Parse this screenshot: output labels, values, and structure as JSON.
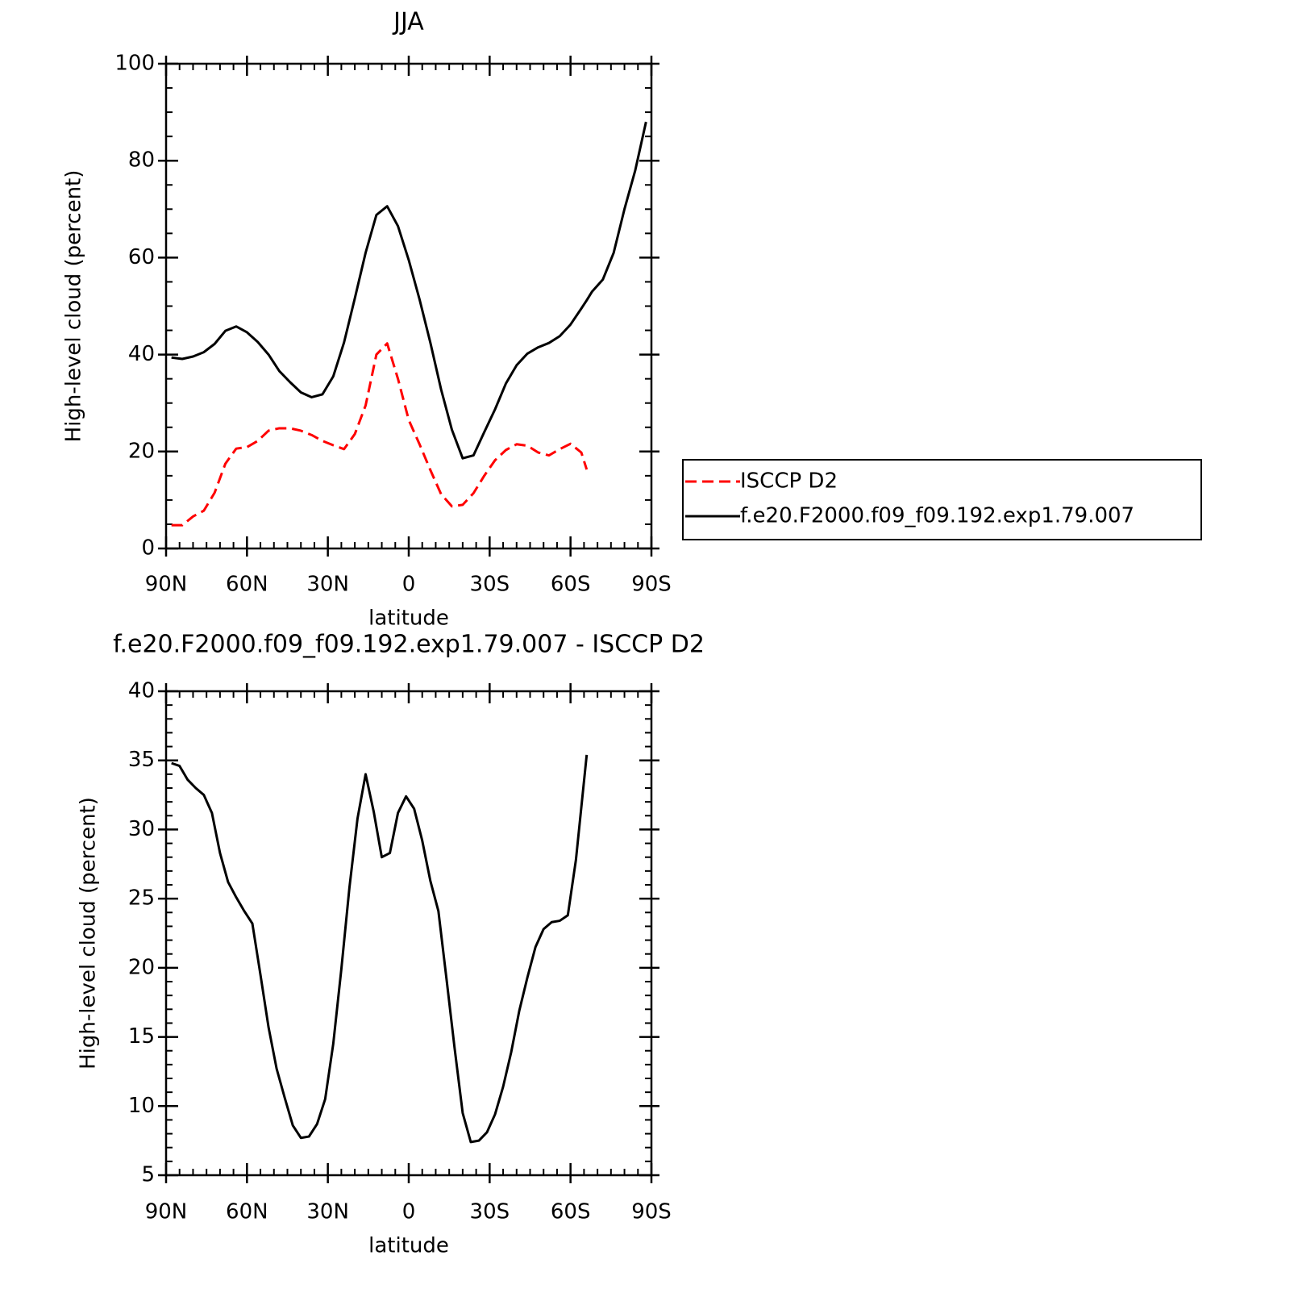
{
  "chart_data": [
    {
      "type": "line",
      "title": "JJA",
      "ylabel": "High-level cloud (percent)",
      "xlabel": "latitude",
      "x": [
        88,
        84,
        80,
        76,
        72,
        68,
        64,
        60,
        56,
        52,
        48,
        44,
        40,
        36,
        32,
        28,
        24,
        20,
        16,
        12,
        8,
        4,
        0,
        -4,
        -8,
        -12,
        -16,
        -20,
        -24,
        -28,
        -32,
        -36,
        -40,
        -44,
        -48,
        -52,
        -56,
        -60,
        -64,
        -66,
        -68,
        -72,
        -76,
        -80,
        -84,
        -88
      ],
      "series": [
        {
          "name": "ISCCP D2",
          "color": "#ff0000",
          "dash": true,
          "values": [
            4.8,
            4.8,
            6.6,
            7.8,
            11.5,
            17.5,
            20.6,
            20.9,
            22.2,
            24.3,
            24.8,
            24.8,
            24.3,
            23.4,
            22.2,
            21.3,
            20.5,
            23.6,
            29.5,
            40,
            42.3,
            35,
            26.5,
            21.5,
            16.2,
            11.2,
            8.7,
            9.0,
            11.4,
            15,
            18.2,
            20.3,
            21.5,
            21.2,
            19.8,
            19.2,
            20.5,
            21.6,
            19.8,
            16.3,
            null,
            null,
            null,
            null,
            null,
            null
          ]
        },
        {
          "name": "f.e20.F2000.f09_f09.192.exp1.79.007",
          "color": "#000000",
          "dash": false,
          "values": [
            39.4,
            39.1,
            39.6,
            40.5,
            42.2,
            44.9,
            45.8,
            44.6,
            42.6,
            40.0,
            36.6,
            34.3,
            32.2,
            31.2,
            31.8,
            35.5,
            42.5,
            51.6,
            61,
            68.8,
            70.6,
            66.5,
            59.5,
            51.4,
            42.5,
            32.8,
            24.5,
            18.6,
            19.2,
            24,
            28.7,
            34,
            37.8,
            40.2,
            41.5,
            42.4,
            43.8,
            46.2,
            49.5,
            51.2,
            53,
            55.5,
            61,
            70,
            78,
            88
          ]
        }
      ],
      "xlim": [
        90,
        -90
      ],
      "xticks": [
        {
          "value": 90,
          "label": "90N"
        },
        {
          "value": 60,
          "label": "60N"
        },
        {
          "value": 30,
          "label": "30N"
        },
        0,
        {
          "value": -30,
          "label": "30S"
        },
        {
          "value": -60,
          "label": "60S"
        },
        {
          "value": -90,
          "label": "90S"
        }
      ],
      "ylim": [
        0,
        100
      ],
      "yticks": [
        0,
        20,
        40,
        60,
        80,
        100
      ],
      "xminor": 6,
      "yminor": 4,
      "legend": "outside-right"
    },
    {
      "type": "line",
      "title": "f.e20.F2000.f09_f09.192.exp1.79.007 - ISCCP D2",
      "ylabel": "High-level cloud (percent)",
      "xlabel": "latitude",
      "x": [
        88,
        85,
        82,
        79,
        76,
        73,
        70,
        67,
        64,
        61,
        58,
        55,
        52,
        49,
        46,
        43,
        40,
        37,
        34,
        31,
        28,
        25,
        22,
        19,
        16,
        13,
        10,
        7,
        4,
        1,
        -2,
        -5,
        -8,
        -11,
        -14,
        -17,
        -20,
        -23,
        -26,
        -29,
        -32,
        -35,
        -38,
        -41,
        -44,
        -47,
        -50,
        -53,
        -56,
        -59,
        -62,
        -66
      ],
      "series": [
        {
          "color": "#000000",
          "dash": false,
          "values": [
            34.8,
            34.6,
            33.6,
            33.0,
            32.5,
            31.2,
            28.3,
            26.2,
            25.1,
            24.1,
            23.2,
            19.5,
            15.7,
            12.7,
            10.6,
            8.6,
            7.7,
            7.8,
            8.7,
            10.5,
            14.5,
            19.9,
            25.8,
            30.8,
            34.0,
            31.3,
            28.0,
            28.3,
            31.2,
            32.4,
            31.5,
            29.2,
            26.3,
            24.1,
            19.2,
            14.2,
            9.5,
            7.4,
            7.5,
            8.1,
            9.4,
            11.4,
            13.9,
            16.9,
            19.3,
            21.5,
            22.8,
            23.3,
            23.4,
            23.8,
            27.8,
            35.4
          ]
        }
      ],
      "xlim": [
        90,
        -90
      ],
      "xticks": [
        {
          "value": 90,
          "label": "90N"
        },
        {
          "value": 60,
          "label": "60N"
        },
        {
          "value": 30,
          "label": "30N"
        },
        0,
        {
          "value": -30,
          "label": "30S"
        },
        {
          "value": -60,
          "label": "60S"
        },
        {
          "value": -90,
          "label": "90S"
        }
      ],
      "ylim": [
        5,
        40
      ],
      "yticks": [
        5,
        10,
        15,
        20,
        25,
        30,
        35,
        40
      ],
      "xminor": 6,
      "yminor": 5
    }
  ]
}
